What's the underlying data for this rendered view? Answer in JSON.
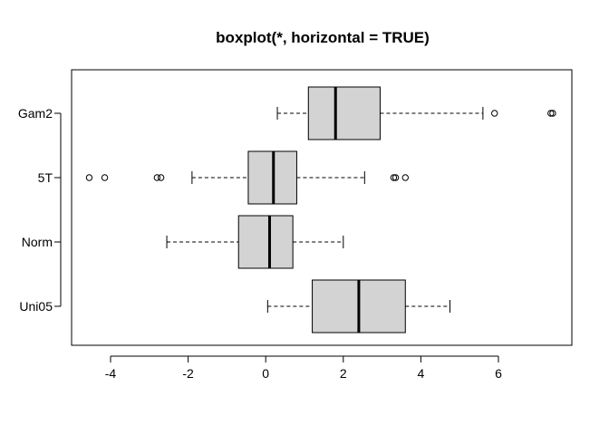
{
  "chart_data": {
    "type": "boxplot",
    "orientation": "horizontal",
    "title": "boxplot(*, horizontal = TRUE)",
    "xlabel": "",
    "ylabel": "",
    "xlim": [
      -5,
      7.8
    ],
    "x_ticks": [
      -4,
      -2,
      0,
      2,
      4,
      6
    ],
    "x_tick_labels": [
      "-4",
      "-2",
      "0",
      "2",
      "4",
      "6"
    ],
    "grid": false,
    "box_fill": "#d3d3d3",
    "categories": [
      "Uni05",
      "Norm",
      "5T",
      "Gam2"
    ],
    "series": [
      {
        "name": "Uni05",
        "whisker_low": 0.05,
        "q1": 1.2,
        "median": 2.4,
        "q3": 3.6,
        "whisker_high": 4.75,
        "outliers": []
      },
      {
        "name": "Norm",
        "whisker_low": -2.55,
        "q1": -0.7,
        "median": 0.1,
        "q3": 0.7,
        "whisker_high": 2.0,
        "outliers": []
      },
      {
        "name": "5T",
        "whisker_low": -1.9,
        "q1": -0.45,
        "median": 0.2,
        "q3": 0.8,
        "whisker_high": 2.55,
        "outliers": [
          -4.55,
          -4.15,
          -2.8,
          -2.7,
          3.3,
          3.35,
          3.6
        ]
      },
      {
        "name": "Gam2",
        "whisker_low": 0.3,
        "q1": 1.1,
        "median": 1.8,
        "q3": 2.95,
        "whisker_high": 5.6,
        "outliers": [
          5.9,
          7.35,
          7.4
        ]
      }
    ]
  }
}
